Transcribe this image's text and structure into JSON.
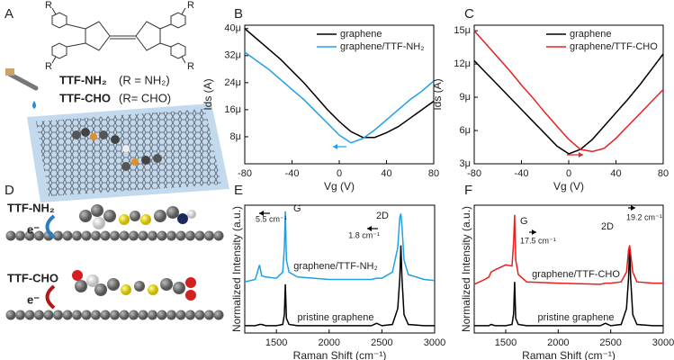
{
  "panel_labels": [
    "A",
    "B",
    "C",
    "D",
    "E",
    "F"
  ],
  "panel_a": {
    "r_labels": [
      "R",
      "R",
      "R",
      "R"
    ],
    "molecule_1": "TTF-NH₂",
    "molecule_1_r": "(R = NH₂)",
    "molecule_2": "TTF-CHO",
    "molecule_2_r": "(R= CHO)"
  },
  "panel_d": {
    "molecule_1": "TTF-NH₂",
    "electron_1": "e⁻",
    "molecule_2": "TTF-CHO",
    "electron_2": "e⁻"
  },
  "chart_data": [
    {
      "type": "line",
      "legend": "upper right",
      "x_label": "Vg (V)",
      "y_label": "Ids (A)",
      "x": [
        -80,
        -70,
        -60,
        -50,
        -40,
        -30,
        -20,
        -10,
        0,
        10,
        20,
        30,
        40,
        50,
        60,
        70,
        80
      ],
      "series": [
        {
          "name": "graphene",
          "color": "#000000",
          "values": [
            4e-05,
            3.7e-05,
            3.4e-05,
            3.1e-05,
            2.75e-05,
            2.4e-05,
            2e-05,
            1.6e-05,
            1.25e-05,
            9.5e-06,
            7.8e-06,
            7.8e-06,
            9.2e-06,
            1.1e-05,
            1.35e-05,
            1.6e-05,
            1.85e-05
          ]
        },
        {
          "name": "graphene/TTF-NH₂",
          "color": "#1ea0e6",
          "values": [
            3.3e-05,
            3.05e-05,
            2.8e-05,
            2.5e-05,
            2.2e-05,
            1.9e-05,
            1.55e-05,
            1.2e-05,
            8.5e-06,
            6.2e-06,
            7.5e-06,
            1e-05,
            1.3e-05,
            1.6e-05,
            1.9e-05,
            2.15e-05,
            2.45e-05
          ]
        }
      ],
      "xlim": [
        -80,
        80
      ],
      "xticks": [
        -80,
        -40,
        0,
        40,
        80
      ],
      "ylim": [
        0,
        4.1e-05
      ],
      "yticks": [
        {
          "value": 8e-06,
          "label": "8μ"
        },
        {
          "value": 1.6e-05,
          "label": "16μ"
        },
        {
          "value": 2.4e-05,
          "label": "24μ"
        },
        {
          "value": 3.2e-05,
          "label": "32μ"
        },
        {
          "value": 4e-05,
          "label": "40μ"
        }
      ]
    },
    {
      "type": "line",
      "legend": "upper right",
      "x_label": "Vg (V)",
      "y_label": "Ids (A)",
      "x": [
        -80,
        -70,
        -60,
        -50,
        -40,
        -30,
        -20,
        -10,
        0,
        10,
        20,
        30,
        40,
        50,
        60,
        70,
        80
      ],
      "series": [
        {
          "name": "graphene",
          "color": "#000000",
          "values": [
            1.23e-05,
            1.12e-05,
            1.01e-05,
            9e-06,
            7.9e-06,
            6.8e-06,
            5.7e-06,
            4.6e-06,
            3.9e-06,
            4.3e-06,
            5.2e-06,
            6.4e-06,
            7.6e-06,
            8.8e-06,
            1.01e-05,
            1.15e-05,
            1.29e-05
          ]
        },
        {
          "name": "graphene/TTF-CHO",
          "color": "#e8201f",
          "values": [
            1.5e-05,
            1.38e-05,
            1.26e-05,
            1.14e-05,
            1.01e-05,
            8.9e-06,
            7.6e-06,
            6.4e-06,
            5.2e-06,
            4.3e-06,
            4.1e-06,
            4.4e-06,
            5.3e-06,
            6.4e-06,
            7.5e-06,
            8.6e-06,
            9.7e-06
          ]
        }
      ],
      "xlim": [
        -80,
        80
      ],
      "xticks": [
        -80,
        -40,
        0,
        40,
        80
      ],
      "ylim": [
        3e-06,
        1.55e-05
      ],
      "yticks": [
        {
          "value": 3e-06,
          "label": "3μ"
        },
        {
          "value": 6e-06,
          "label": "6μ"
        },
        {
          "value": 9e-06,
          "label": "9μ"
        },
        {
          "value": 1.2e-05,
          "label": "12μ"
        },
        {
          "value": 1.5e-05,
          "label": "15μ"
        }
      ]
    },
    {
      "type": "line",
      "legend": "inline",
      "x_label": "Raman Shift (cm⁻¹)",
      "y_label": "Normalized Intensity (a.u.)",
      "annotations": [
        "G",
        "5.5 cm⁻¹",
        "2D",
        "1.8 cm⁻¹"
      ],
      "x": [
        1200,
        1300,
        1340,
        1360,
        1400,
        1500,
        1560,
        1575,
        1585,
        1595,
        1620,
        1700,
        2000,
        2400,
        2450,
        2500,
        2600,
        2650,
        2670,
        2680,
        2690,
        2710,
        2750,
        2900,
        3000
      ],
      "series": [
        {
          "name": "pristine graphene",
          "color": "#000000",
          "values": [
            0.06,
            0.06,
            0.07,
            0.07,
            0.06,
            0.06,
            0.07,
            0.15,
            0.4,
            0.12,
            0.07,
            0.06,
            0.06,
            0.06,
            0.08,
            0.06,
            0.07,
            0.2,
            0.45,
            0.72,
            0.45,
            0.15,
            0.07,
            0.06,
            0.06
          ]
        },
        {
          "name": "graphene/TTF-NH₂",
          "color": "#1ea0e6",
          "values": [
            0.42,
            0.44,
            0.56,
            0.47,
            0.46,
            0.45,
            0.5,
            0.7,
            1.0,
            0.6,
            0.5,
            0.46,
            0.44,
            0.44,
            0.45,
            0.45,
            0.5,
            0.7,
            0.95,
            0.98,
            0.88,
            0.6,
            0.48,
            0.44,
            0.43
          ]
        }
      ],
      "xlim": [
        1200,
        3000
      ],
      "xticks": [
        1500,
        2000,
        2500,
        3000
      ],
      "ylim": [
        0,
        1.05
      ]
    },
    {
      "type": "line",
      "legend": "inline",
      "x_label": "Raman Shift (cm⁻¹)",
      "y_label": "Normalized Intensity (a.u.)",
      "annotations": [
        "G",
        "17.5 cm⁻¹",
        "2D",
        "19.2 cm⁻¹"
      ],
      "x": [
        1200,
        1300,
        1340,
        1360,
        1400,
        1500,
        1560,
        1575,
        1585,
        1595,
        1620,
        1700,
        2000,
        2400,
        2450,
        2500,
        2600,
        2650,
        2670,
        2680,
        2690,
        2710,
        2750,
        2900,
        3000
      ],
      "series": [
        {
          "name": "pristine graphene",
          "color": "#000000",
          "values": [
            0.06,
            0.06,
            0.06,
            0.07,
            0.06,
            0.06,
            0.07,
            0.16,
            0.42,
            0.12,
            0.07,
            0.06,
            0.06,
            0.06,
            0.08,
            0.06,
            0.07,
            0.2,
            0.45,
            0.7,
            0.45,
            0.15,
            0.07,
            0.06,
            0.06
          ]
        },
        {
          "name": "graphene/TTF-CHO",
          "color": "#e8201f",
          "values": [
            0.4,
            0.44,
            0.46,
            0.5,
            0.52,
            0.56,
            0.55,
            0.75,
            0.97,
            0.6,
            0.48,
            0.42,
            0.41,
            0.4,
            0.41,
            0.41,
            0.42,
            0.5,
            0.68,
            0.72,
            0.65,
            0.5,
            0.42,
            0.41,
            0.41
          ]
        }
      ],
      "xlim": [
        1200,
        3000
      ],
      "xticks": [
        1500,
        2000,
        2500,
        3000
      ],
      "ylim": [
        0,
        1.05
      ]
    }
  ]
}
